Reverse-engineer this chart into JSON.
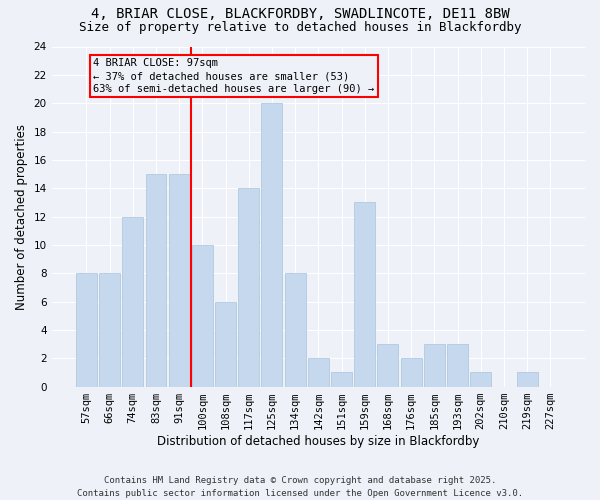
{
  "title_line1": "4, BRIAR CLOSE, BLACKFORDBY, SWADLINCOTE, DE11 8BW",
  "title_line2": "Size of property relative to detached houses in Blackfordby",
  "xlabel": "Distribution of detached houses by size in Blackfordby",
  "ylabel": "Number of detached properties",
  "categories": [
    "57sqm",
    "66sqm",
    "74sqm",
    "83sqm",
    "91sqm",
    "100sqm",
    "108sqm",
    "117sqm",
    "125sqm",
    "134sqm",
    "142sqm",
    "151sqm",
    "159sqm",
    "168sqm",
    "176sqm",
    "185sqm",
    "193sqm",
    "202sqm",
    "210sqm",
    "219sqm",
    "227sqm"
  ],
  "values": [
    8,
    8,
    12,
    15,
    15,
    10,
    6,
    14,
    20,
    8,
    2,
    1,
    13,
    3,
    2,
    3,
    3,
    1,
    0,
    1,
    0
  ],
  "bar_color": "#c5d8ed",
  "bar_edge_color": "#a8c4dc",
  "vline_x": 4.5,
  "vline_color": "red",
  "annotation_text": "4 BRIAR CLOSE: 97sqm\n← 37% of detached houses are smaller (53)\n63% of semi-detached houses are larger (90) →",
  "annotation_box_color": "red",
  "ylim": [
    0,
    24
  ],
  "yticks": [
    0,
    2,
    4,
    6,
    8,
    10,
    12,
    14,
    16,
    18,
    20,
    22,
    24
  ],
  "footer": "Contains HM Land Registry data © Crown copyright and database right 2025.\nContains public sector information licensed under the Open Government Licence v3.0.",
  "bg_color": "#eef2f8",
  "grid_color": "#ffffff",
  "title_fontsize": 10,
  "subtitle_fontsize": 9,
  "label_fontsize": 8.5,
  "tick_fontsize": 7.5,
  "footer_fontsize": 6.5,
  "annot_fontsize": 7.5
}
